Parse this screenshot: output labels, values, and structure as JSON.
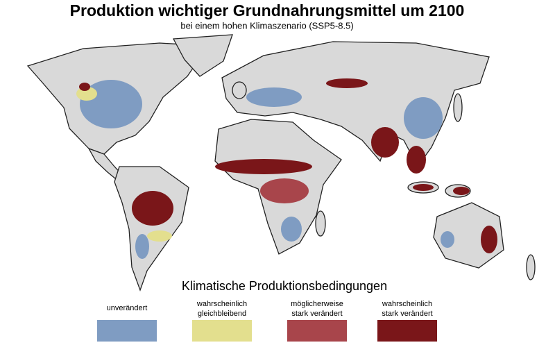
{
  "title": "Produktion wichtiger Grundnahrungsmittel um 2100",
  "subtitle": "bei einem hohen Klimaszenario (SSP5-8.5)",
  "legend": {
    "title": "Klimatische Produktionsbedingungen",
    "items": [
      {
        "lines": [
          "unverändert"
        ],
        "color": "#7f9cc2"
      },
      {
        "lines": [
          "wahrscheinlich",
          "gleichbleibend"
        ],
        "color": "#e3df8e"
      },
      {
        "lines": [
          "möglicherweise",
          "stark verändert"
        ],
        "color": "#a8454b"
      },
      {
        "lines": [
          "wahrscheinlich",
          "stark verändert"
        ],
        "color": "#7a1619"
      }
    ]
  }
}
